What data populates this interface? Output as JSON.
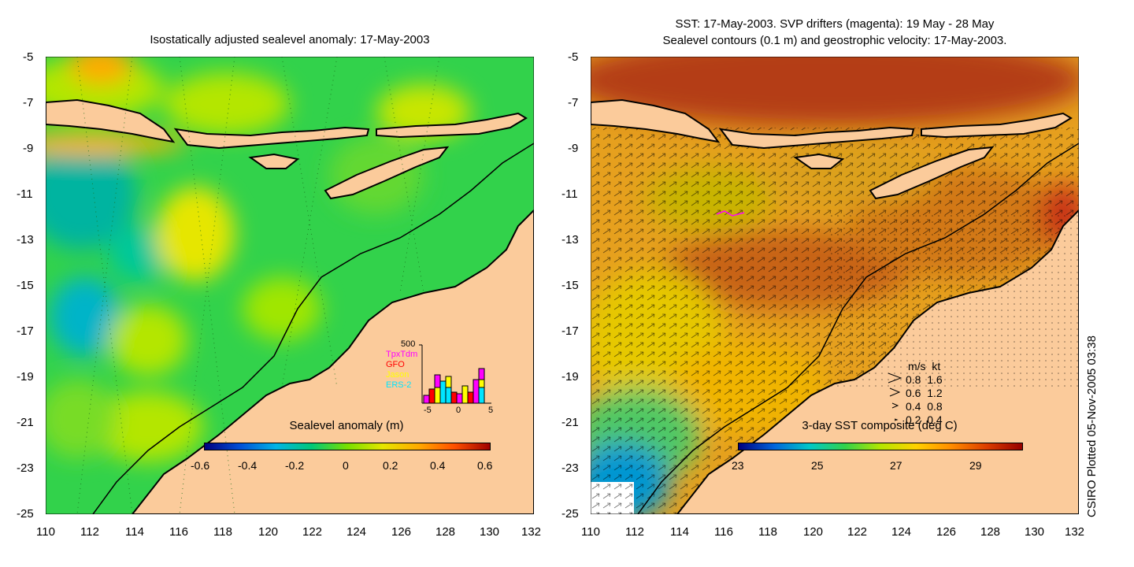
{
  "left_panel": {
    "title": "Isostatically adjusted sealevel anomaly: 17-May-2003",
    "colorbar_label": "Sealevel anomaly (m)",
    "colorbar_ticks": [
      "-0.6",
      "-0.4",
      "-0.2",
      "0",
      "0.2",
      "0.4",
      "0.6"
    ],
    "colorbar_colors": [
      "#00007f",
      "#0050d8",
      "#00b4e6",
      "#00c878",
      "#78e000",
      "#e6e600",
      "#ffaa00",
      "#ff5000",
      "#a00000"
    ],
    "inset": {
      "ymax_label": "500",
      "legend": [
        {
          "name": "TpxTdm",
          "color": "#ff00ff"
        },
        {
          "name": "GFO",
          "color": "#ff0000"
        },
        {
          "name": "Jason",
          "color": "#ffff00"
        },
        {
          "name": "ERS-2",
          "color": "#00e5ff"
        }
      ],
      "x_ticks": [
        "-5",
        "0",
        "5"
      ]
    }
  },
  "right_panel": {
    "title_line1": "SST: 17-May-2003. SVP drifters (magenta): 19 May - 28 May",
    "title_line2": "Sealevel contours (0.1 m) and geostrophic velocity: 17-May-2003.",
    "colorbar_label": "3-day SST composite (deg C)",
    "colorbar_ticks": [
      "23",
      "25",
      "27",
      "29"
    ],
    "colorbar_colors": [
      "#00007f",
      "#0064dc",
      "#00c8c8",
      "#32d24b",
      "#b4e600",
      "#ffd200",
      "#ff8c00",
      "#dc3c00",
      "#960000"
    ],
    "velocity_legend": {
      "header": "m/s  kt",
      "rows": [
        "0.8  1.6",
        "0.6  1.2",
        "0.4  0.8",
        "0.2  0.4"
      ]
    }
  },
  "axes": {
    "x_ticks": [
      "110",
      "112",
      "114",
      "116",
      "118",
      "120",
      "122",
      "124",
      "126",
      "128",
      "130",
      "132"
    ],
    "y_ticks": [
      "-5",
      "-7",
      "-9",
      "-11",
      "-13",
      "-15",
      "-17",
      "-19",
      "-21",
      "-23",
      "-25"
    ]
  },
  "credit": "CSIRO Plotted 05-Nov-2005 03:38",
  "colors": {
    "land": "#fbcb9b",
    "left_sea": "#32d24b",
    "right_sea": "#e6a01e"
  }
}
